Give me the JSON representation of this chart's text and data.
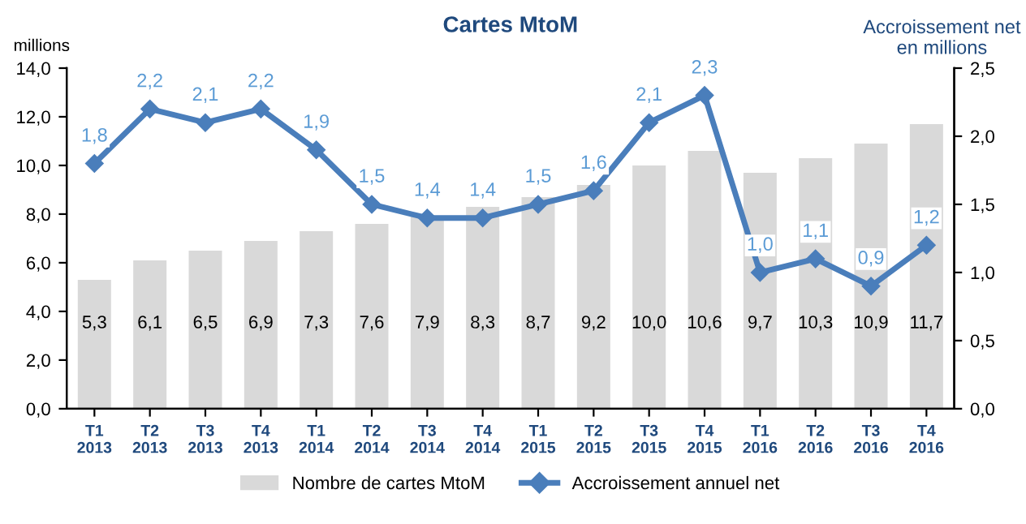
{
  "chart_data": {
    "type": "bar",
    "title": "Cartes MtoM",
    "ylabel": "millions",
    "y2label": "Accroissement net\nen millions",
    "categories": [
      "T1\n2013",
      "T2\n2013",
      "T3\n2013",
      "T4\n2013",
      "T1\n2014",
      "T2\n2014",
      "T3\n2014",
      "T4\n2014",
      "T1\n2015",
      "T2\n2015",
      "T3\n2015",
      "T4\n2015",
      "T1\n2016",
      "T2\n2016",
      "T3\n2016",
      "T4\n2016"
    ],
    "series": [
      {
        "name": "Nombre de cartes MtoM",
        "color": "#d9d9d9",
        "values": [
          5.3,
          6.1,
          6.5,
          6.9,
          7.3,
          7.6,
          7.9,
          8.3,
          8.7,
          9.2,
          10.0,
          10.6,
          9.7,
          10.3,
          10.9,
          11.7
        ],
        "value_labels": [
          "5,3",
          "6,1",
          "6,5",
          "6,9",
          "7,3",
          "7,6",
          "7,9",
          "8,3",
          "8,7",
          "9,2",
          "10,0",
          "10,6",
          "9,7",
          "10,3",
          "10,9",
          "11,7"
        ]
      },
      {
        "name": "Accroissement annuel net",
        "type": "line",
        "axis": "y2",
        "color": "#4a7ebb",
        "marker": "diamond",
        "values": [
          1.8,
          2.2,
          2.1,
          2.2,
          1.9,
          1.5,
          1.4,
          1.4,
          1.5,
          1.6,
          2.1,
          2.3,
          1.0,
          1.1,
          0.9,
          1.2
        ],
        "value_labels": [
          "1,8",
          "2,2",
          "2,1",
          "2,2",
          "1,9",
          "1,5",
          "1,4",
          "1,4",
          "1,5",
          "1,6",
          "2,1",
          "2,3",
          "1,0",
          "1,1",
          "0,9",
          "1,2"
        ]
      }
    ],
    "ylim": [
      0,
      14
    ],
    "yticks": [
      {
        "value": 0,
        "label": "0,0"
      },
      {
        "value": 2,
        "label": "2,0"
      },
      {
        "value": 4,
        "label": "4,0"
      },
      {
        "value": 6,
        "label": "6,0"
      },
      {
        "value": 8,
        "label": "8,0"
      },
      {
        "value": 10,
        "label": "10,0"
      },
      {
        "value": 12,
        "label": "12,0"
      },
      {
        "value": 14,
        "label": "14,0"
      }
    ],
    "y2lim": [
      0,
      2.5
    ],
    "y2ticks": [
      {
        "value": 0,
        "label": "0,0"
      },
      {
        "value": 0.5,
        "label": "0,5"
      },
      {
        "value": 1,
        "label": "1,0"
      },
      {
        "value": 1.5,
        "label": "1,5"
      },
      {
        "value": 2,
        "label": "2,0"
      },
      {
        "value": 2.5,
        "label": "2,5"
      }
    ],
    "legend": "bottom",
    "grid": false
  }
}
